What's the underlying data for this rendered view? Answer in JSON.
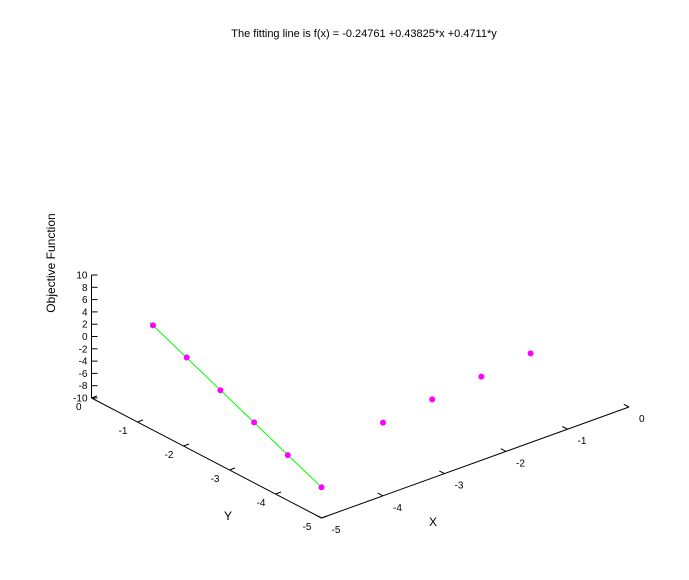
{
  "chart_data": {
    "type": "scatter",
    "title": "The fitting line is f(x) = -0.24761 +0.43825*x +0.4711*y",
    "xlabel": "X",
    "ylabel": "Y",
    "zlabel": "Objective Function",
    "xlim": [
      -5,
      0
    ],
    "ylim": [
      -5,
      0
    ],
    "zlim": [
      -10,
      10
    ],
    "x_ticks": [
      "-5",
      "-4",
      "-3",
      "-2",
      "-1",
      "0"
    ],
    "y_ticks": [
      "-5",
      "-4",
      "-3",
      "-2",
      "-1",
      "0"
    ],
    "z_ticks": [
      "-10",
      "-8",
      "-6",
      "-4",
      "-2",
      "0",
      "2",
      "4",
      "6",
      "8",
      "10"
    ],
    "grid": false,
    "fit": {
      "intercept": -0.24761,
      "coef_x": 0.43825,
      "coef_y": 0.4711,
      "color": "#00ff00"
    },
    "point_color": "#ff00ff",
    "points": [
      {
        "x": -5.0,
        "y": -5.0,
        "z": -5.0
      },
      {
        "x": -4.8,
        "y": -4.0,
        "z": -4.4
      },
      {
        "x": -4.6,
        "y": -3.0,
        "z": -3.7
      },
      {
        "x": -4.4,
        "y": -2.0,
        "z": -3.1
      },
      {
        "x": -4.2,
        "y": -1.0,
        "z": -2.4
      },
      {
        "x": -4.0,
        "y": 0.0,
        "z": -1.8
      },
      {
        "x": -4.0,
        "y": -5.0,
        "z": 1.9
      },
      {
        "x": -3.2,
        "y": -5.0,
        "z": 2.8
      },
      {
        "x": -2.4,
        "y": -5.0,
        "z": 3.6
      },
      {
        "x": -1.6,
        "y": -5.0,
        "z": 4.5
      }
    ]
  }
}
